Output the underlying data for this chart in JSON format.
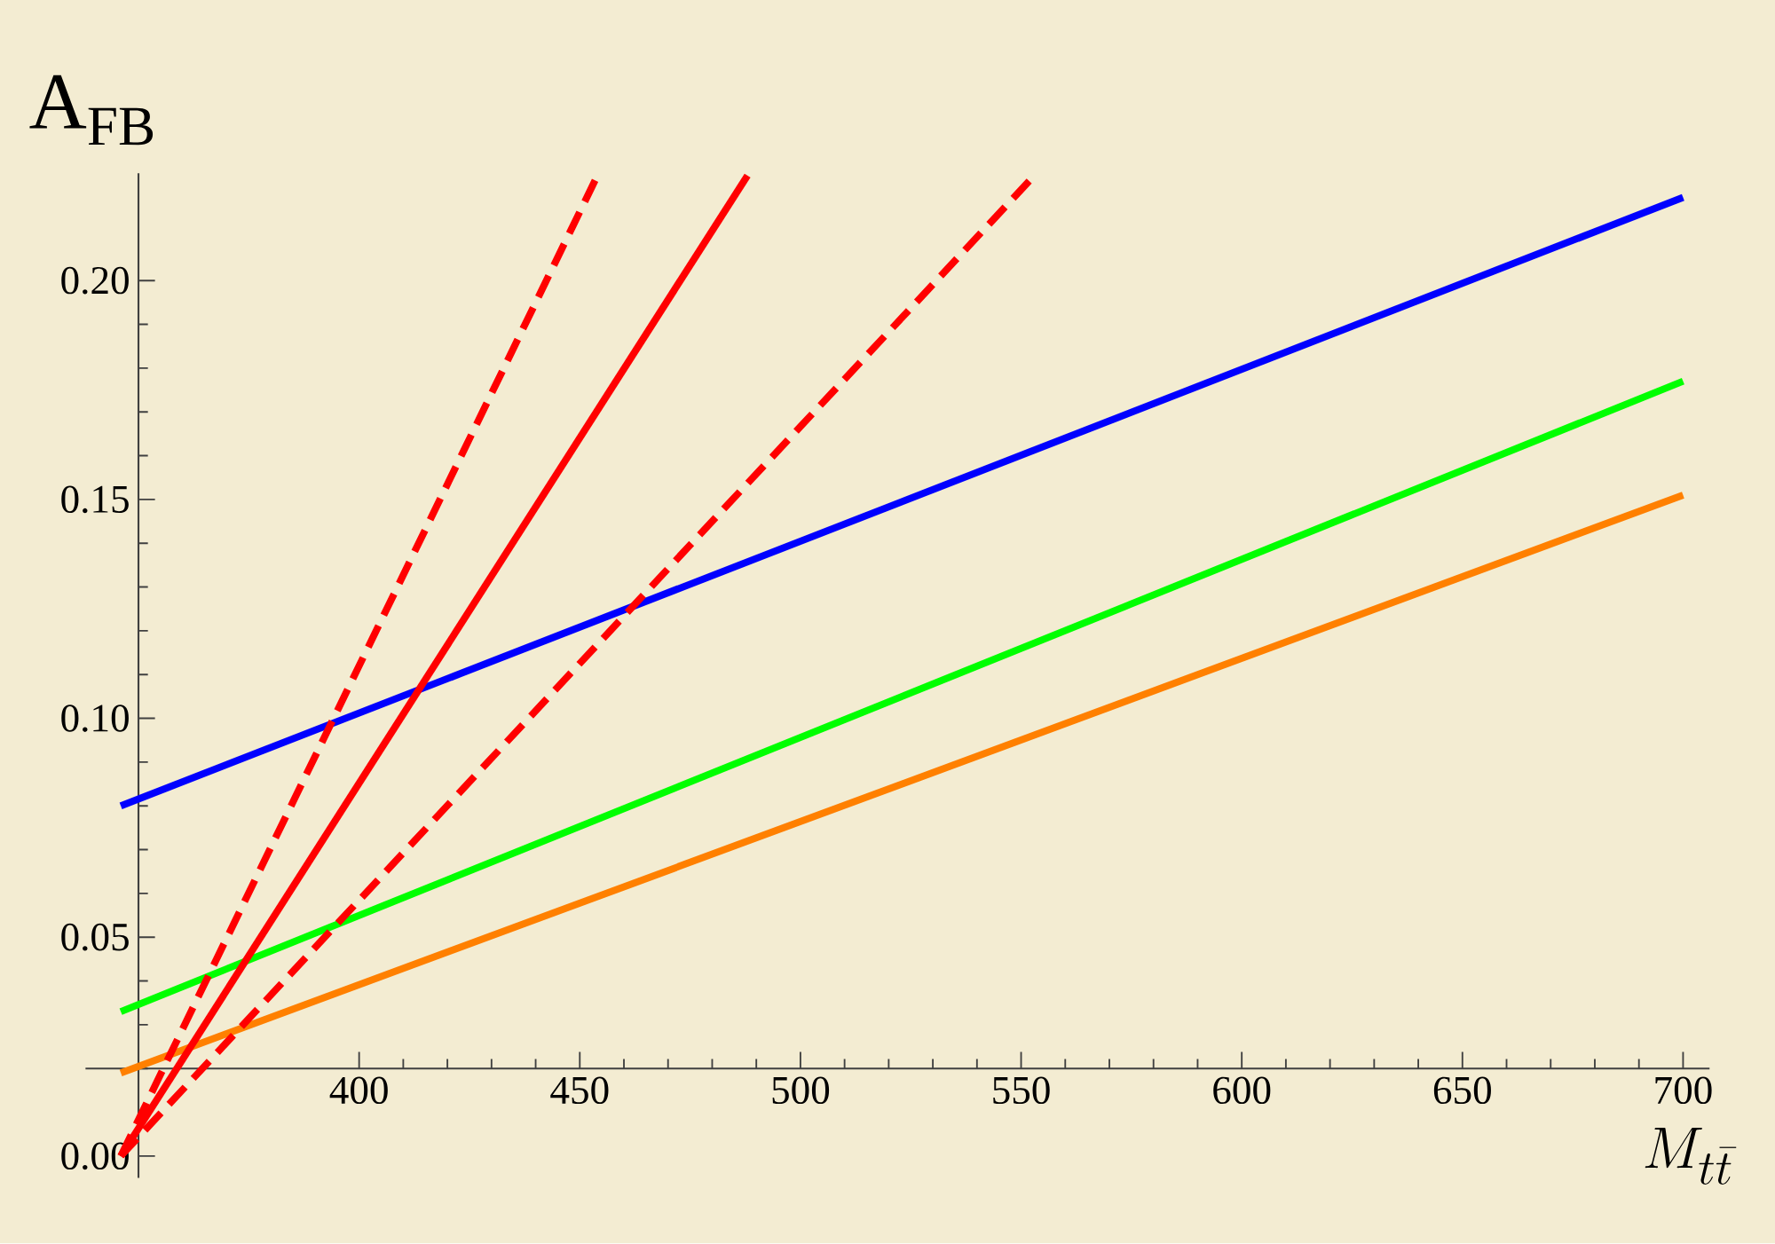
{
  "chart_data": {
    "type": "line",
    "xlabel": "M_{t\\bar{t}}",
    "ylabel": "\\mathrm{A}_{\\mathrm{FB}}",
    "xlim": [
      338,
      706
    ],
    "ylim": [
      -0.005,
      0.2245
    ],
    "xticks": [
      400,
      450,
      500,
      550,
      600,
      650,
      700
    ],
    "yticks": [
      {
        "value": 0,
        "label": "0.00"
      },
      {
        "value": 0.05,
        "label": "0.05"
      },
      {
        "value": 0.1,
        "label": "0.10"
      },
      {
        "value": 0.15,
        "label": "0.15"
      },
      {
        "value": 0.2,
        "label": "0.20"
      }
    ],
    "series": [
      {
        "color": "#ff8000",
        "x": [
          346,
          700
        ],
        "values": [
          0.019,
          0.151
        ]
      },
      {
        "color": "#00ff00",
        "x": [
          346,
          700
        ],
        "values": [
          0.033,
          0.177
        ]
      },
      {
        "color": "#0000ff",
        "x": [
          346,
          700
        ],
        "values": [
          0.08,
          0.219
        ]
      },
      {
        "color": "#ff0000",
        "x": [
          346,
          488
        ],
        "values": [
          0,
          0.224
        ]
      },
      {
        "color": "#ff0000",
        "x": [
          346,
          454
        ],
        "values": [
          0,
          0.224
        ],
        "line_style": "dashed"
      },
      {
        "color": "#ff0000",
        "x": [
          346,
          553
        ],
        "values": [
          0,
          0.224
        ],
        "line_style": "dashed"
      }
    ]
  }
}
